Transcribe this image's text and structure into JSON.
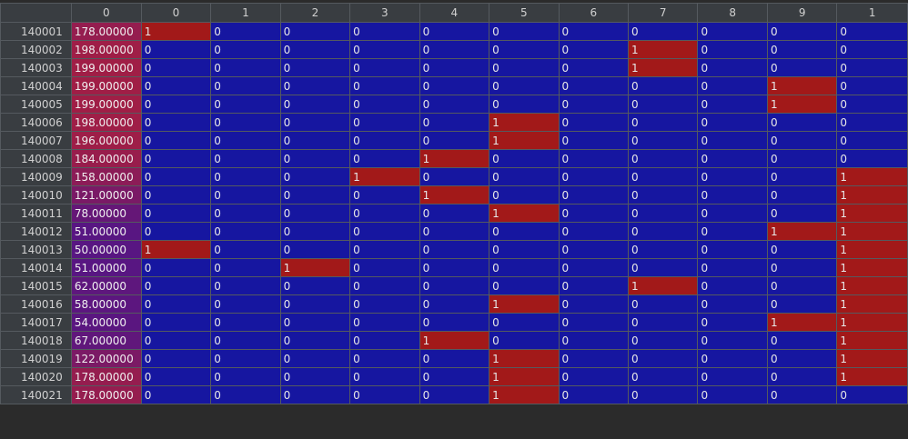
{
  "colors": {
    "header_bg": "#393d41",
    "zero_bg": "#1616a0",
    "one_bg": "#a21919",
    "grid_line": "#555a5f"
  },
  "columns": [
    "0",
    "0",
    "1",
    "2",
    "3",
    "4",
    "5",
    "6",
    "7",
    "8",
    "9",
    "1"
  ],
  "rows": [
    {
      "index": "140001",
      "values": [
        "178.00000",
        "1",
        "0",
        "0",
        "0",
        "0",
        "0",
        "0",
        "0",
        "0",
        "0",
        "0"
      ]
    },
    {
      "index": "140002",
      "values": [
        "198.00000",
        "0",
        "0",
        "0",
        "0",
        "0",
        "0",
        "0",
        "1",
        "0",
        "0",
        "0"
      ]
    },
    {
      "index": "140003",
      "values": [
        "199.00000",
        "0",
        "0",
        "0",
        "0",
        "0",
        "0",
        "0",
        "1",
        "0",
        "0",
        "0"
      ]
    },
    {
      "index": "140004",
      "values": [
        "199.00000",
        "0",
        "0",
        "0",
        "0",
        "0",
        "0",
        "0",
        "0",
        "0",
        "1",
        "0"
      ]
    },
    {
      "index": "140005",
      "values": [
        "199.00000",
        "0",
        "0",
        "0",
        "0",
        "0",
        "0",
        "0",
        "0",
        "0",
        "1",
        "0"
      ]
    },
    {
      "index": "140006",
      "values": [
        "198.00000",
        "0",
        "0",
        "0",
        "0",
        "0",
        "1",
        "0",
        "0",
        "0",
        "0",
        "0"
      ]
    },
    {
      "index": "140007",
      "values": [
        "196.00000",
        "0",
        "0",
        "0",
        "0",
        "0",
        "1",
        "0",
        "0",
        "0",
        "0",
        "0"
      ]
    },
    {
      "index": "140008",
      "values": [
        "184.00000",
        "0",
        "0",
        "0",
        "0",
        "1",
        "0",
        "0",
        "0",
        "0",
        "0",
        "0"
      ]
    },
    {
      "index": "140009",
      "values": [
        "158.00000",
        "0",
        "0",
        "0",
        "1",
        "0",
        "0",
        "0",
        "0",
        "0",
        "0",
        "1"
      ]
    },
    {
      "index": "140010",
      "values": [
        "121.00000",
        "0",
        "0",
        "0",
        "0",
        "1",
        "0",
        "0",
        "0",
        "0",
        "0",
        "1"
      ]
    },
    {
      "index": "140011",
      "values": [
        "78.00000",
        "0",
        "0",
        "0",
        "0",
        "0",
        "1",
        "0",
        "0",
        "0",
        "0",
        "1"
      ]
    },
    {
      "index": "140012",
      "values": [
        "51.00000",
        "0",
        "0",
        "0",
        "0",
        "0",
        "0",
        "0",
        "0",
        "0",
        "1",
        "1"
      ]
    },
    {
      "index": "140013",
      "values": [
        "50.00000",
        "1",
        "0",
        "0",
        "0",
        "0",
        "0",
        "0",
        "0",
        "0",
        "0",
        "1"
      ]
    },
    {
      "index": "140014",
      "values": [
        "51.00000",
        "0",
        "0",
        "1",
        "0",
        "0",
        "0",
        "0",
        "0",
        "0",
        "0",
        "1"
      ]
    },
    {
      "index": "140015",
      "values": [
        "62.00000",
        "0",
        "0",
        "0",
        "0",
        "0",
        "0",
        "0",
        "1",
        "0",
        "0",
        "1"
      ]
    },
    {
      "index": "140016",
      "values": [
        "58.00000",
        "0",
        "0",
        "0",
        "0",
        "0",
        "1",
        "0",
        "0",
        "0",
        "0",
        "1"
      ]
    },
    {
      "index": "140017",
      "values": [
        "54.00000",
        "0",
        "0",
        "0",
        "0",
        "0",
        "0",
        "0",
        "0",
        "0",
        "1",
        "1"
      ]
    },
    {
      "index": "140018",
      "values": [
        "67.00000",
        "0",
        "0",
        "0",
        "0",
        "1",
        "0",
        "0",
        "0",
        "0",
        "0",
        "1"
      ]
    },
    {
      "index": "140019",
      "values": [
        "122.00000",
        "0",
        "0",
        "0",
        "0",
        "0",
        "1",
        "0",
        "0",
        "0",
        "0",
        "1"
      ]
    },
    {
      "index": "140020",
      "values": [
        "178.00000",
        "0",
        "0",
        "0",
        "0",
        "0",
        "1",
        "0",
        "0",
        "0",
        "0",
        "1"
      ]
    },
    {
      "index": "140021",
      "values": [
        "178.00000",
        "0",
        "0",
        "0",
        "0",
        "0",
        "1",
        "0",
        "0",
        "0",
        "0",
        "0"
      ]
    }
  ]
}
